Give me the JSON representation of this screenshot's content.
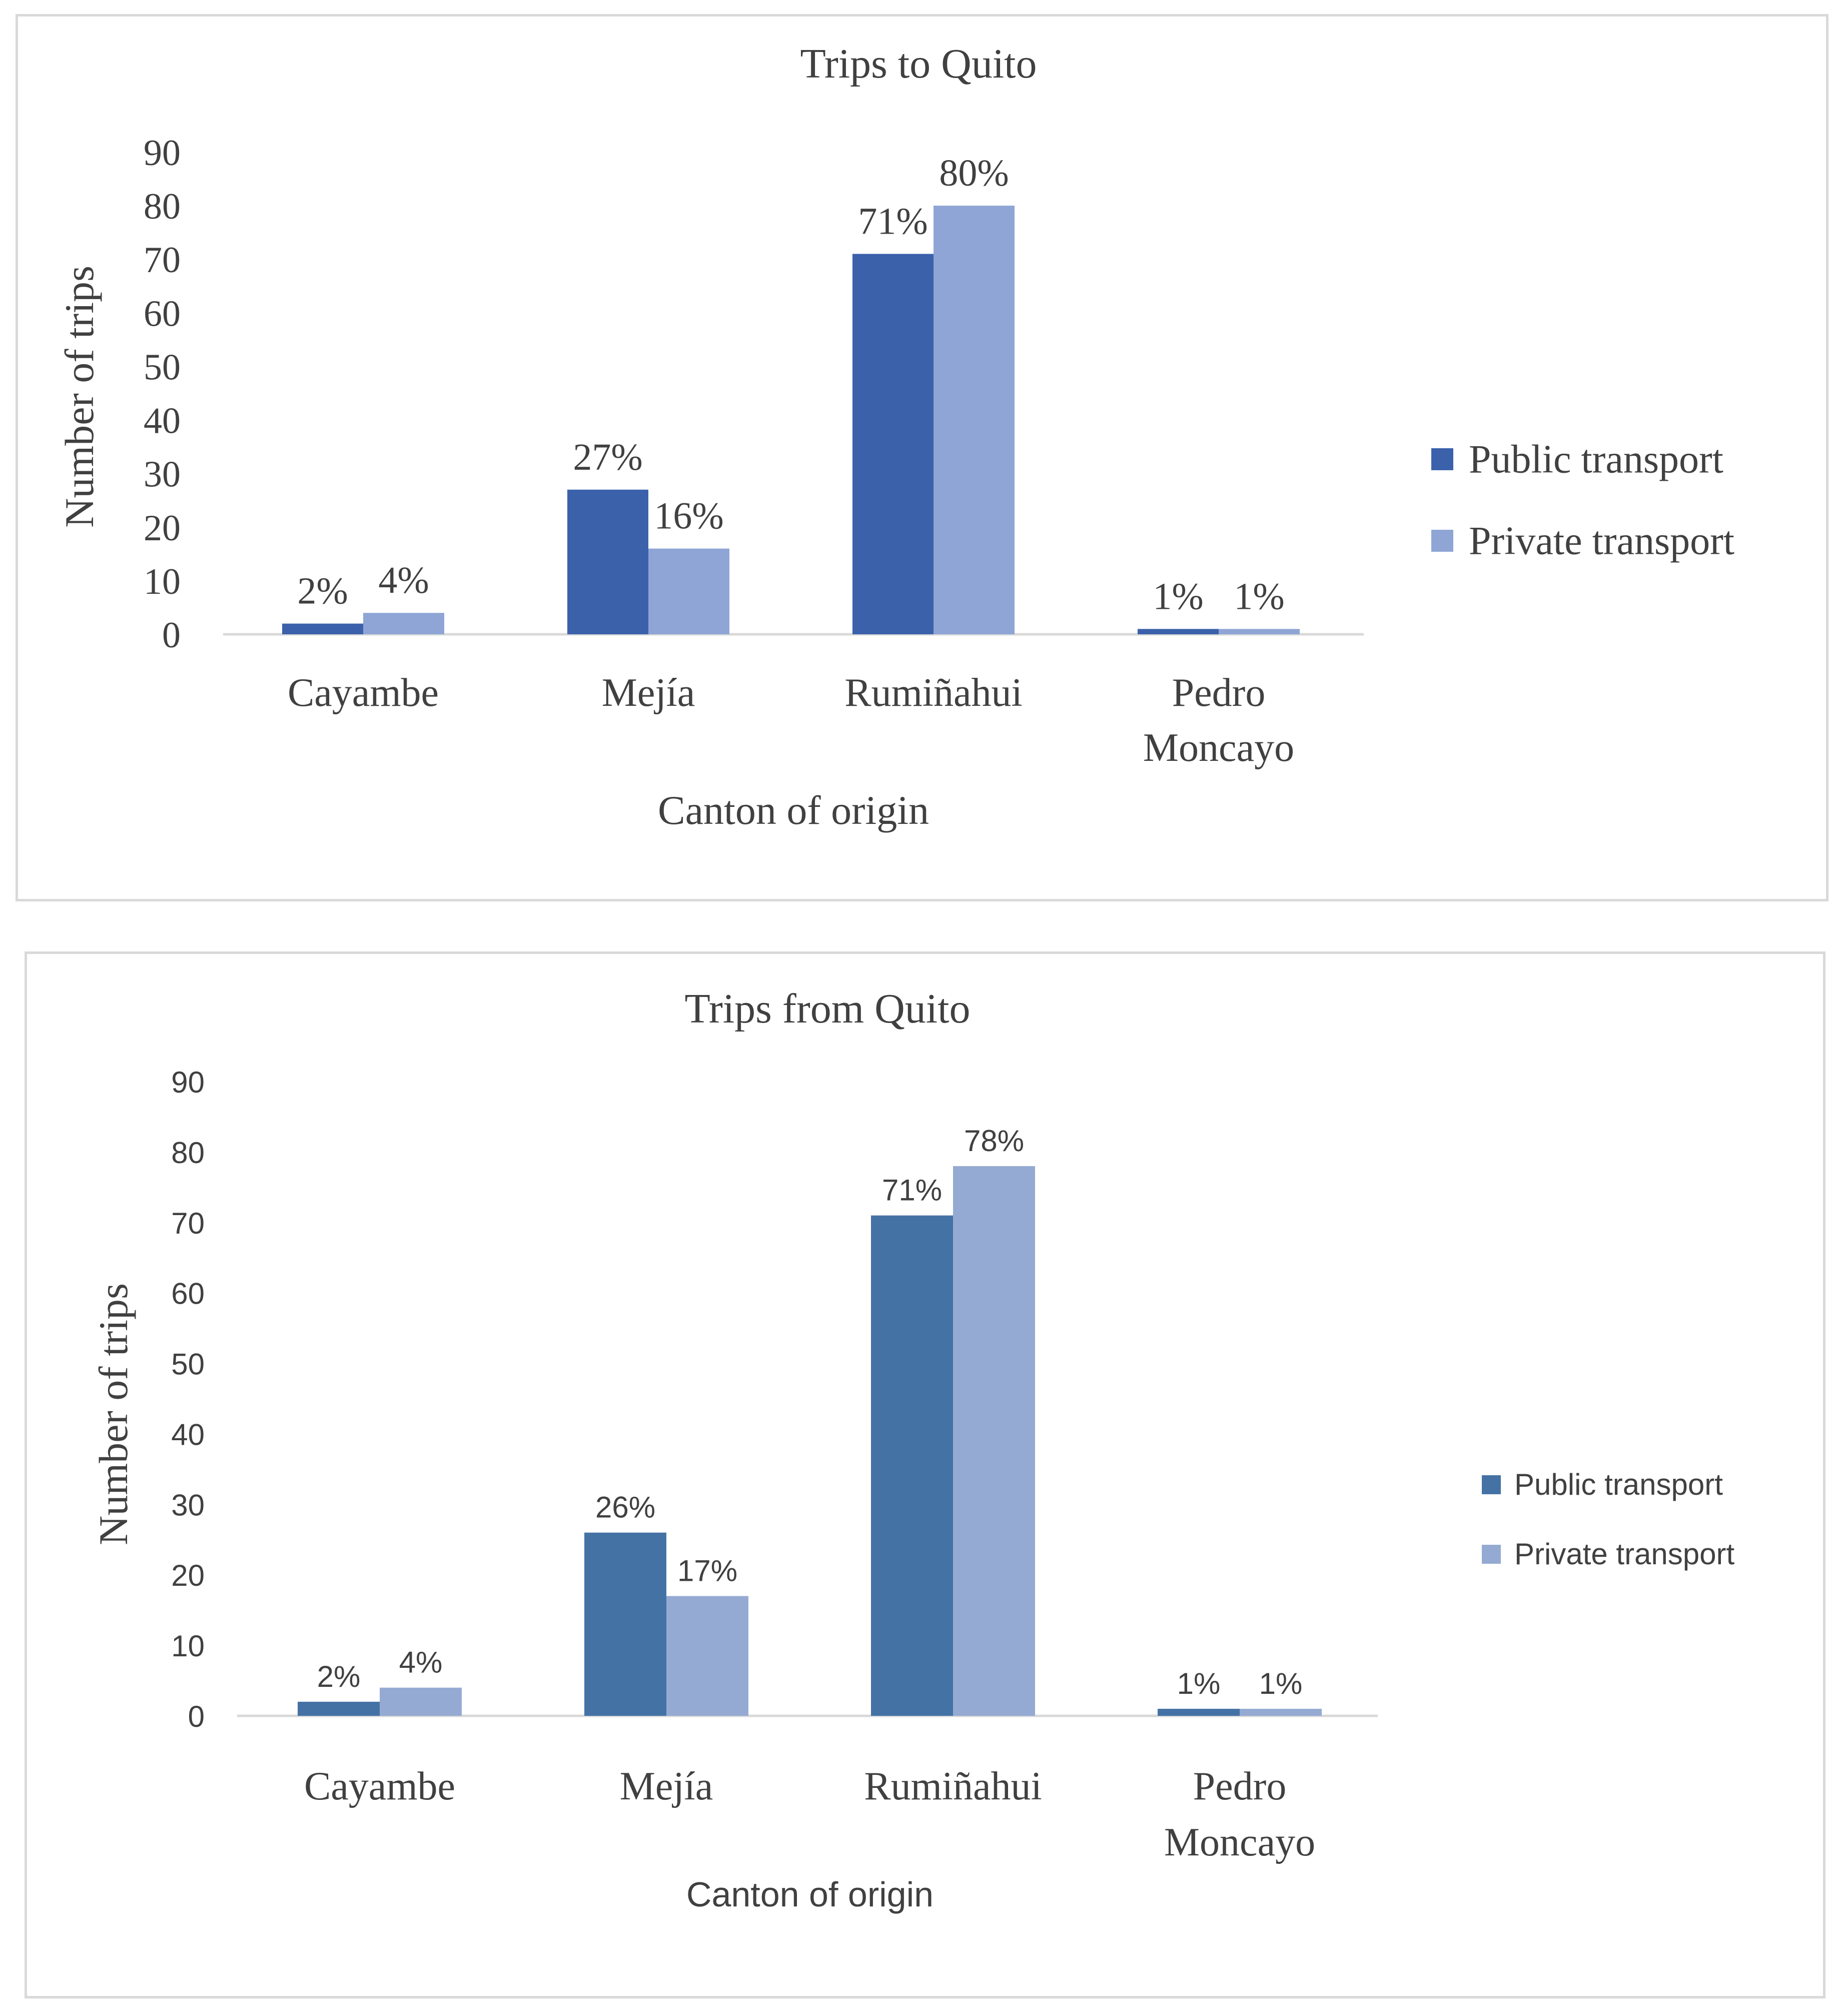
{
  "colors": {
    "public": "#3b61ab",
    "private": "#8fa5d5",
    "public_2": "#4472a5",
    "private_2": "#95aad2",
    "axis": "#d9d9d9",
    "text": "#404040"
  },
  "chart_data": [
    {
      "type": "bar",
      "title": "Trips to Quito",
      "xlabel": "Canton of origin",
      "ylabel": "Number of trips",
      "ylim": [
        0,
        90
      ],
      "yticks": [
        "0",
        "10",
        "20",
        "30",
        "40",
        "50",
        "60",
        "70",
        "80",
        "90"
      ],
      "categories": [
        [
          "Cayambe"
        ],
        [
          "Mejía"
        ],
        [
          "Rumiñahui"
        ],
        [
          "Pedro",
          "Moncayo"
        ]
      ],
      "series": [
        {
          "name": "Public transport",
          "values": [
            2,
            27,
            71,
            1
          ],
          "labels": [
            "2%",
            "27%",
            "71%",
            "1%"
          ]
        },
        {
          "name": "Private transport",
          "values": [
            4,
            16,
            80,
            1
          ],
          "labels": [
            "4%",
            "16%",
            "80%",
            "1%"
          ]
        }
      ],
      "legend": "right"
    },
    {
      "type": "bar",
      "title": "Trips from Quito",
      "xlabel": "Canton of origin",
      "ylabel": "Number of trips",
      "ylim": [
        0,
        90
      ],
      "yticks": [
        "0",
        "10",
        "20",
        "30",
        "40",
        "50",
        "60",
        "70",
        "80",
        "90"
      ],
      "categories": [
        [
          "Cayambe"
        ],
        [
          "Mejía"
        ],
        [
          "Rumiñahui"
        ],
        [
          "Pedro",
          "Moncayo"
        ]
      ],
      "series": [
        {
          "name": "Public transport",
          "values": [
            2,
            26,
            71,
            1
          ],
          "labels": [
            "2%",
            "26%",
            "71%",
            "1%"
          ]
        },
        {
          "name": "Private transport",
          "values": [
            4,
            17,
            78,
            1
          ],
          "labels": [
            "4%",
            "17%",
            "78%",
            "1%"
          ]
        }
      ],
      "legend": "right"
    }
  ]
}
